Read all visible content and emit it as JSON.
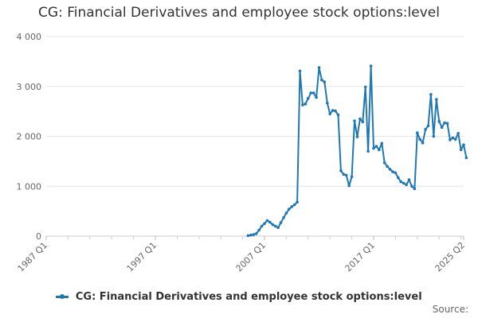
{
  "chart_data": {
    "type": "line",
    "title": "CG: Financial Derivatives and employee stock options:level",
    "xlabel": "",
    "ylabel": "",
    "ylim": [
      0,
      4000
    ],
    "y_ticks": [
      0,
      1000,
      2000,
      3000,
      4000
    ],
    "y_tick_labels": [
      "0",
      "1 000",
      "2 000",
      "3 000",
      "4 000"
    ],
    "x_range": [
      "1987 Q1",
      "2025 Q2"
    ],
    "x_tick_labels": [
      "1987 Q1",
      "1997 Q1",
      "2007 Q1",
      "2017 Q1",
      "2025 Q2"
    ],
    "grid": "horizontal",
    "legend_position": "bottom",
    "color": "#1f77b4",
    "series": [
      {
        "name": "CG: Financial Derivatives and employee stock options:level",
        "points": [
          [
            "2005 Q3",
            10
          ],
          [
            "2005 Q4",
            20
          ],
          [
            "2006 Q1",
            30
          ],
          [
            "2006 Q2",
            50
          ],
          [
            "2006 Q3",
            120
          ],
          [
            "2006 Q4",
            200
          ],
          [
            "2007 Q1",
            250
          ],
          [
            "2007 Q2",
            310
          ],
          [
            "2007 Q3",
            280
          ],
          [
            "2007 Q4",
            230
          ],
          [
            "2008 Q1",
            200
          ],
          [
            "2008 Q2",
            170
          ],
          [
            "2008 Q3",
            270
          ],
          [
            "2008 Q4",
            370
          ],
          [
            "2009 Q1",
            460
          ],
          [
            "2009 Q2",
            540
          ],
          [
            "2009 Q3",
            590
          ],
          [
            "2009 Q4",
            630
          ],
          [
            "2010 Q1",
            680
          ],
          [
            "2010 Q2",
            3310
          ],
          [
            "2010 Q3",
            2630
          ],
          [
            "2010 Q4",
            2650
          ],
          [
            "2011 Q1",
            2760
          ],
          [
            "2011 Q2",
            2870
          ],
          [
            "2011 Q3",
            2870
          ],
          [
            "2011 Q4",
            2780
          ],
          [
            "2012 Q1",
            3380
          ],
          [
            "2012 Q2",
            3130
          ],
          [
            "2012 Q3",
            3090
          ],
          [
            "2012 Q4",
            2670
          ],
          [
            "2013 Q1",
            2450
          ],
          [
            "2013 Q2",
            2520
          ],
          [
            "2013 Q3",
            2510
          ],
          [
            "2013 Q4",
            2430
          ],
          [
            "2014 Q1",
            1310
          ],
          [
            "2014 Q2",
            1240
          ],
          [
            "2014 Q3",
            1220
          ],
          [
            "2014 Q4",
            1010
          ],
          [
            "2015 Q1",
            1190
          ],
          [
            "2015 Q2",
            2310
          ],
          [
            "2015 Q3",
            1990
          ],
          [
            "2015 Q4",
            2350
          ],
          [
            "2016 Q1",
            2290
          ],
          [
            "2016 Q2",
            2990
          ],
          [
            "2016 Q3",
            1700
          ],
          [
            "2016 Q4",
            3410
          ],
          [
            "2017 Q1",
            1760
          ],
          [
            "2017 Q2",
            1800
          ],
          [
            "2017 Q3",
            1730
          ],
          [
            "2017 Q4",
            1860
          ],
          [
            "2018 Q1",
            1470
          ],
          [
            "2018 Q2",
            1400
          ],
          [
            "2018 Q3",
            1340
          ],
          [
            "2018 Q4",
            1290
          ],
          [
            "2019 Q1",
            1270
          ],
          [
            "2019 Q2",
            1170
          ],
          [
            "2019 Q3",
            1090
          ],
          [
            "2019 Q4",
            1060
          ],
          [
            "2020 Q1",
            1030
          ],
          [
            "2020 Q2",
            1130
          ],
          [
            "2020 Q3",
            1000
          ],
          [
            "2020 Q4",
            950
          ],
          [
            "2021 Q1",
            2070
          ],
          [
            "2021 Q2",
            1940
          ],
          [
            "2021 Q3",
            1870
          ],
          [
            "2021 Q4",
            2140
          ],
          [
            "2022 Q1",
            2210
          ],
          [
            "2022 Q2",
            2840
          ],
          [
            "2022 Q3",
            2000
          ],
          [
            "2022 Q4",
            2740
          ],
          [
            "2023 Q1",
            2300
          ],
          [
            "2023 Q2",
            2180
          ],
          [
            "2023 Q3",
            2270
          ],
          [
            "2023 Q4",
            2260
          ],
          [
            "2024 Q1",
            1930
          ],
          [
            "2024 Q2",
            1970
          ],
          [
            "2024 Q3",
            1940
          ],
          [
            "2024 Q4",
            2060
          ],
          [
            "2025 Q1",
            1730
          ],
          [
            "2025 Q2",
            1830
          ],
          [
            "2025 Q3",
            1570
          ]
        ]
      }
    ]
  },
  "legend_label": "CG: Financial Derivatives and employee stock options:level",
  "source_label": "Source:"
}
